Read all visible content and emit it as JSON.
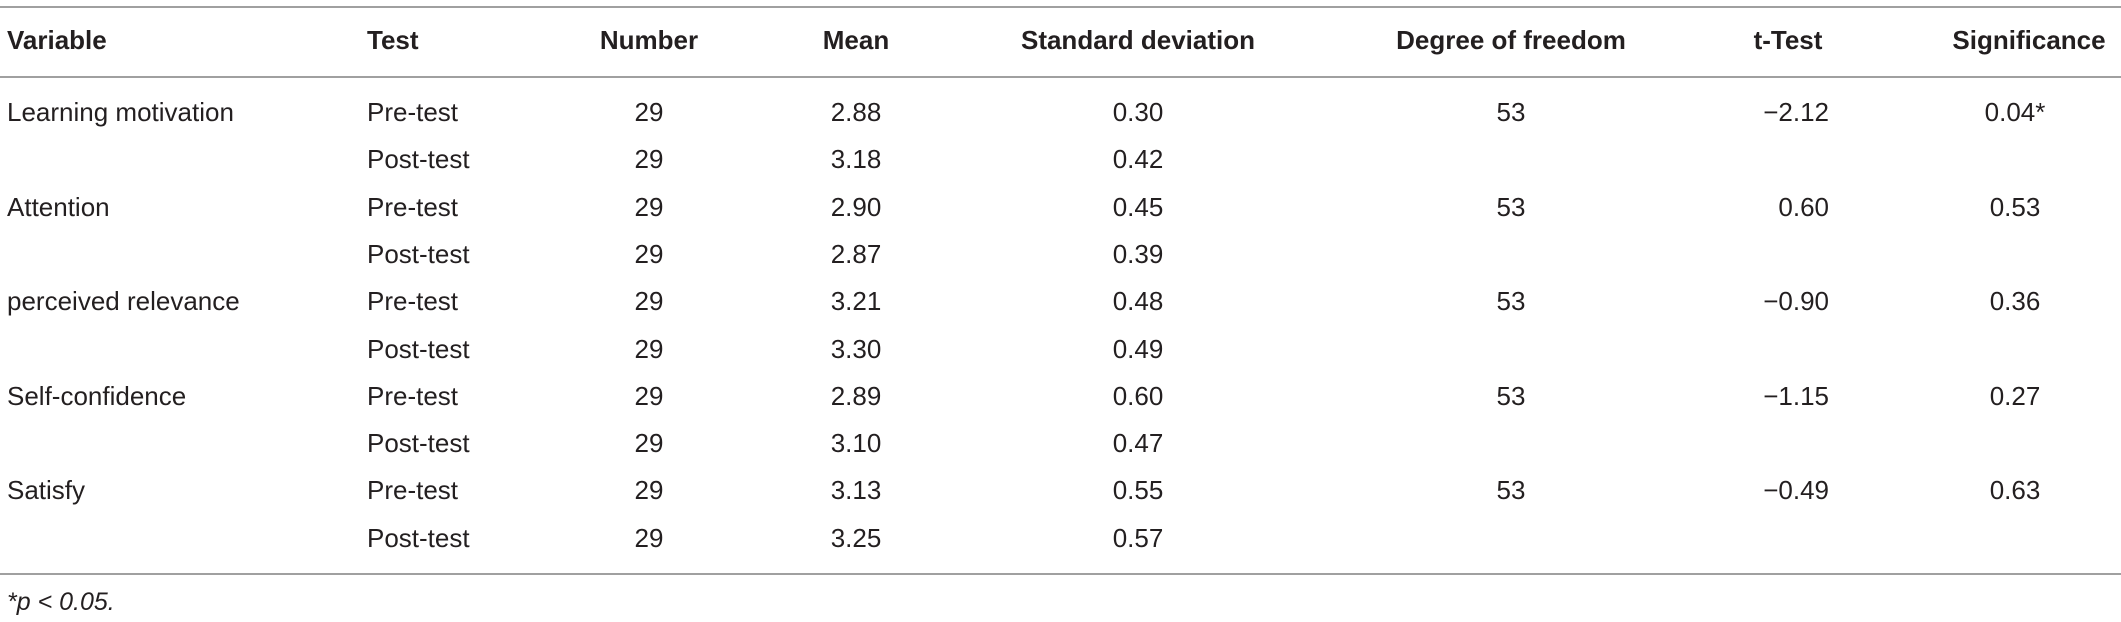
{
  "table": {
    "headers": [
      "Variable",
      "Test",
      "Number",
      "Mean",
      "Standard deviation",
      "Degree of freedom",
      "t-Test",
      "Significance"
    ],
    "rows": [
      [
        "Learning motivation",
        "Pre-test",
        "29",
        "2.88",
        "0.30",
        "53",
        "−2.12",
        "0.04*"
      ],
      [
        null,
        "Post-test",
        "29",
        "3.18",
        "0.42",
        null,
        null,
        null
      ],
      [
        "Attention",
        "Pre-test",
        "29",
        "2.90",
        "0.45",
        "53",
        "0.60",
        "0.53"
      ],
      [
        null,
        "Post-test",
        "29",
        "2.87",
        "0.39",
        null,
        null,
        null
      ],
      [
        "perceived relevance",
        "Pre-test",
        "29",
        "3.21",
        "0.48",
        "53",
        "−0.90",
        "0.36"
      ],
      [
        null,
        "Post-test",
        "29",
        "3.30",
        "0.49",
        null,
        null,
        null
      ],
      [
        "Self-confidence",
        "Pre-test",
        "29",
        "2.89",
        "0.60",
        "53",
        "−1.15",
        "0.27"
      ],
      [
        null,
        "Post-test",
        "29",
        "3.10",
        "0.47",
        null,
        null,
        null
      ],
      [
        "Satisfy",
        "Pre-test",
        "29",
        "3.13",
        "0.55",
        "53",
        "−0.49",
        "0.63"
      ],
      [
        null,
        "Post-test",
        "29",
        "3.25",
        "0.57",
        null,
        null,
        null
      ]
    ],
    "footnote": "*p < 0.05."
  }
}
